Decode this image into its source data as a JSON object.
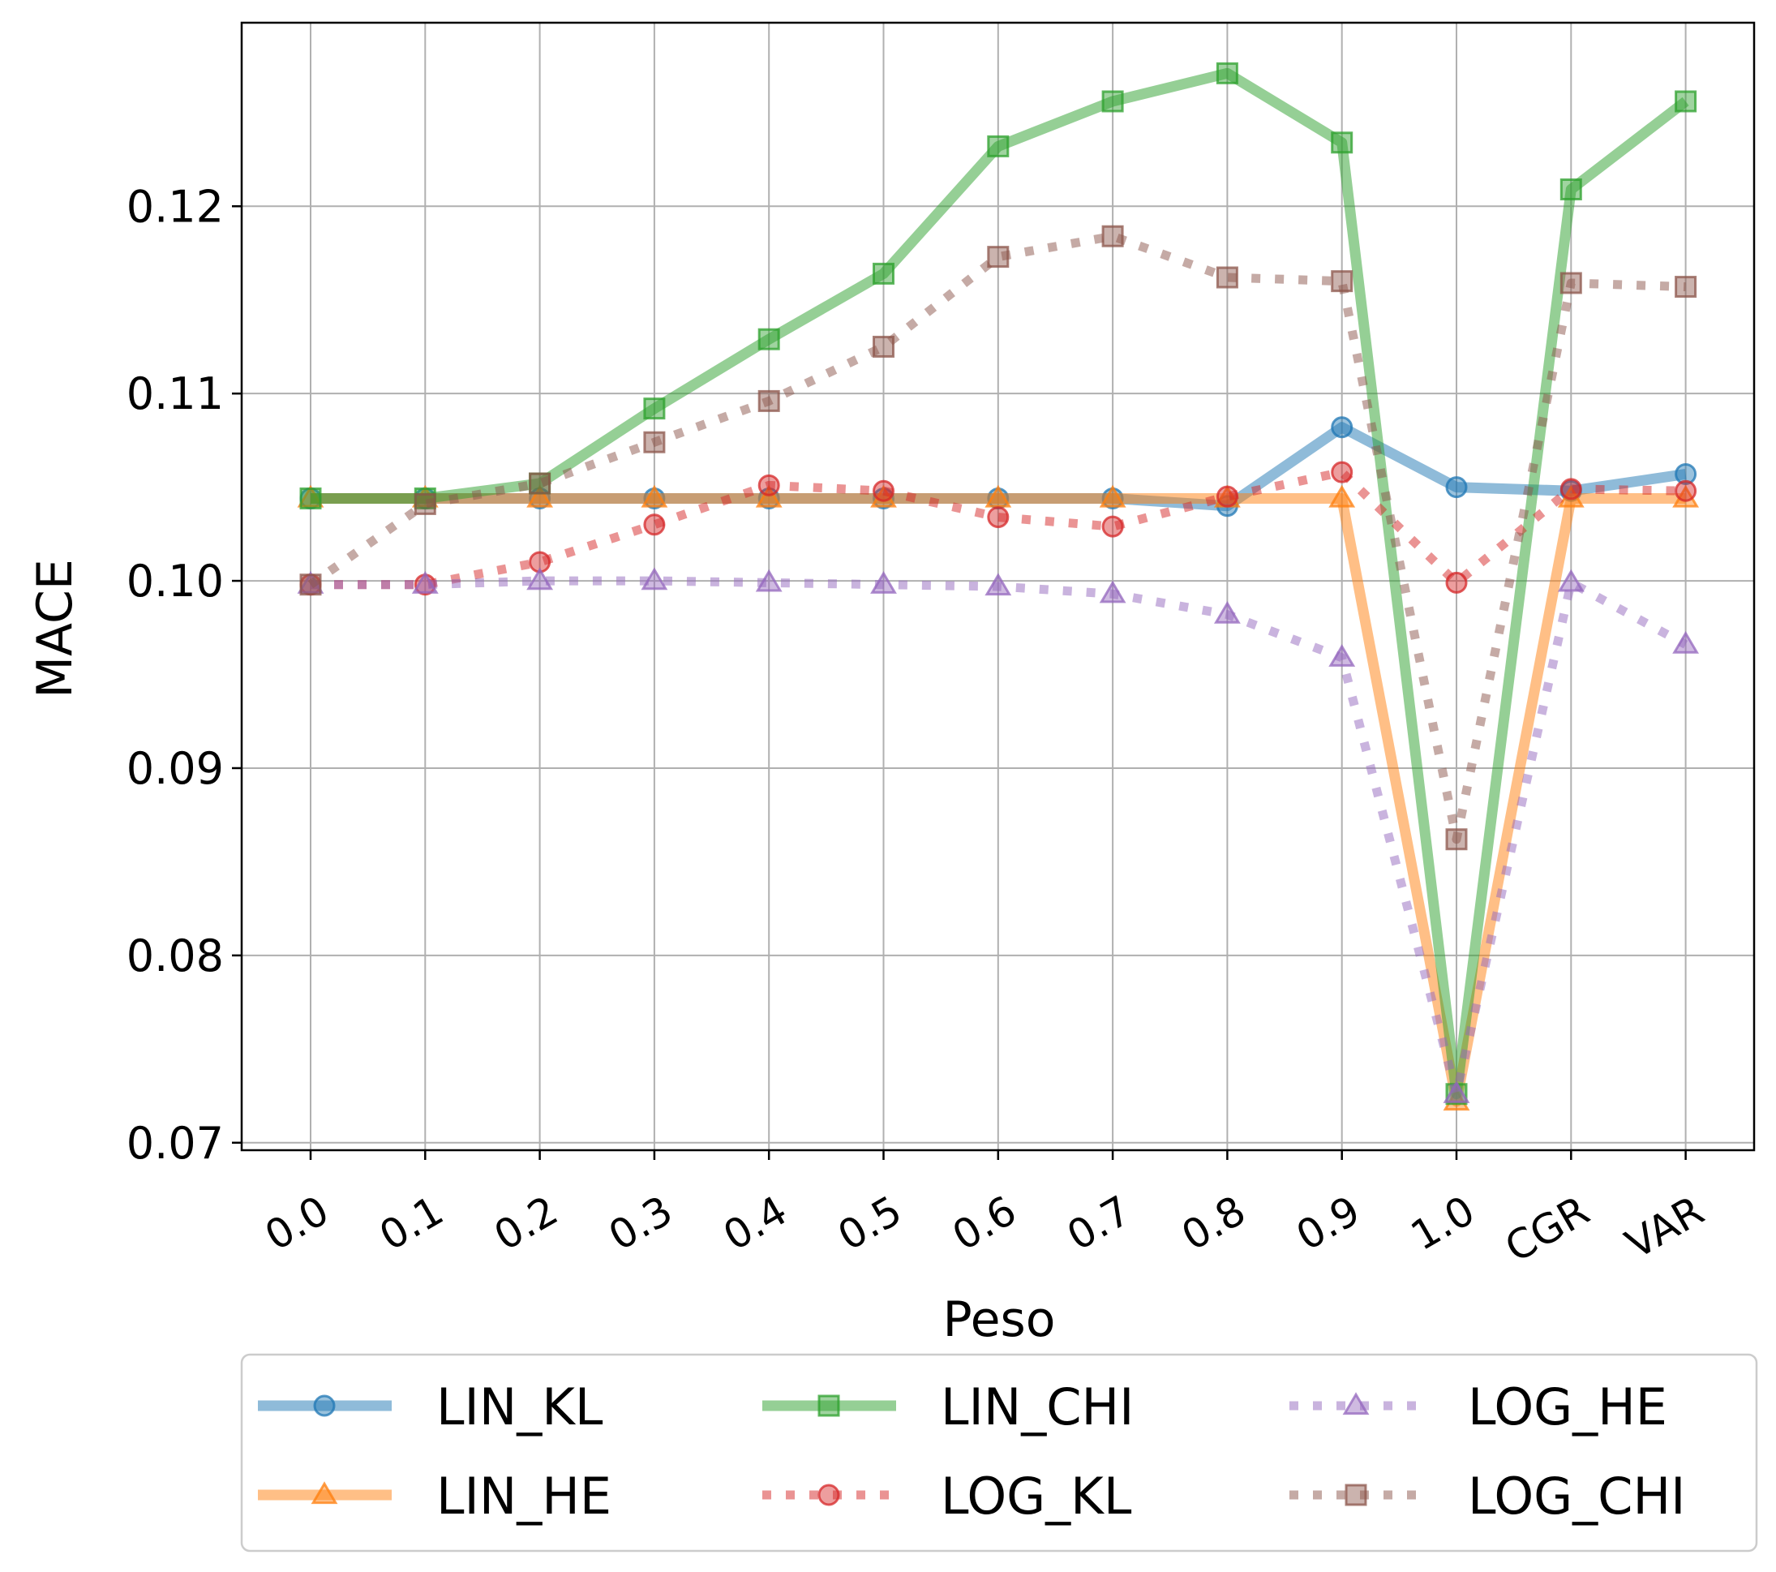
{
  "chart_data": {
    "type": "line",
    "categories": [
      "0.0",
      "0.1",
      "0.2",
      "0.3",
      "0.4",
      "0.5",
      "0.6",
      "0.7",
      "0.8",
      "0.9",
      "1.0",
      "CGR",
      "VAR"
    ],
    "xlabel": "Peso",
    "ylabel": "MACE",
    "ylim": [
      0.0696,
      0.1298
    ],
    "yticks": [
      0.07,
      0.08,
      0.09,
      0.1,
      0.11,
      0.12
    ],
    "ytick_labels": [
      "0.07",
      "0.08",
      "0.09",
      "0.10",
      "0.11",
      "0.12"
    ],
    "grid": true,
    "legend_position": "bottom",
    "series": [
      {
        "name": "LIN_KL",
        "color": "#1f77b4",
        "style": "solid",
        "marker": "circle",
        "values": [
          0.1044,
          0.1044,
          0.1044,
          0.1044,
          0.1044,
          0.1044,
          0.1044,
          0.1044,
          0.104,
          0.1082,
          0.105,
          0.1048,
          0.1057
        ]
      },
      {
        "name": "LIN_HE",
        "color": "#ff7f0e",
        "style": "solid",
        "marker": "triangle",
        "values": [
          0.1044,
          0.1044,
          0.1044,
          0.1044,
          0.1044,
          0.1044,
          0.1044,
          0.1044,
          0.1044,
          0.1044,
          0.0722,
          0.1044,
          0.1044
        ]
      },
      {
        "name": "LIN_CHI",
        "color": "#2ca02c",
        "style": "solid",
        "marker": "square",
        "values": [
          0.1044,
          0.1044,
          0.1052,
          0.1092,
          0.1129,
          0.1164,
          0.1232,
          0.1256,
          0.1271,
          0.1234,
          0.0726,
          0.1209,
          0.1256
        ]
      },
      {
        "name": "LOG_KL",
        "color": "#d62728",
        "style": "dotted",
        "marker": "circle",
        "values": [
          0.0998,
          0.0998,
          0.101,
          0.103,
          0.1051,
          0.1048,
          0.1034,
          0.1029,
          0.1045,
          0.1058,
          0.0999,
          0.1049,
          0.1048
        ]
      },
      {
        "name": "LOG_HE",
        "color": "#9467bd",
        "style": "dotted",
        "marker": "triangle",
        "values": [
          0.0998,
          0.0998,
          0.1,
          0.1,
          0.0999,
          0.0998,
          0.0997,
          0.0993,
          0.0982,
          0.0959,
          0.0726,
          0.0999,
          0.0966
        ]
      },
      {
        "name": "LOG_CHI",
        "color": "#8c564b",
        "style": "dotted",
        "marker": "square",
        "values": [
          0.0998,
          0.1041,
          0.1052,
          0.1074,
          0.1096,
          0.1125,
          0.1173,
          0.1184,
          0.1162,
          0.116,
          0.0862,
          0.1159,
          0.1157
        ]
      }
    ]
  }
}
